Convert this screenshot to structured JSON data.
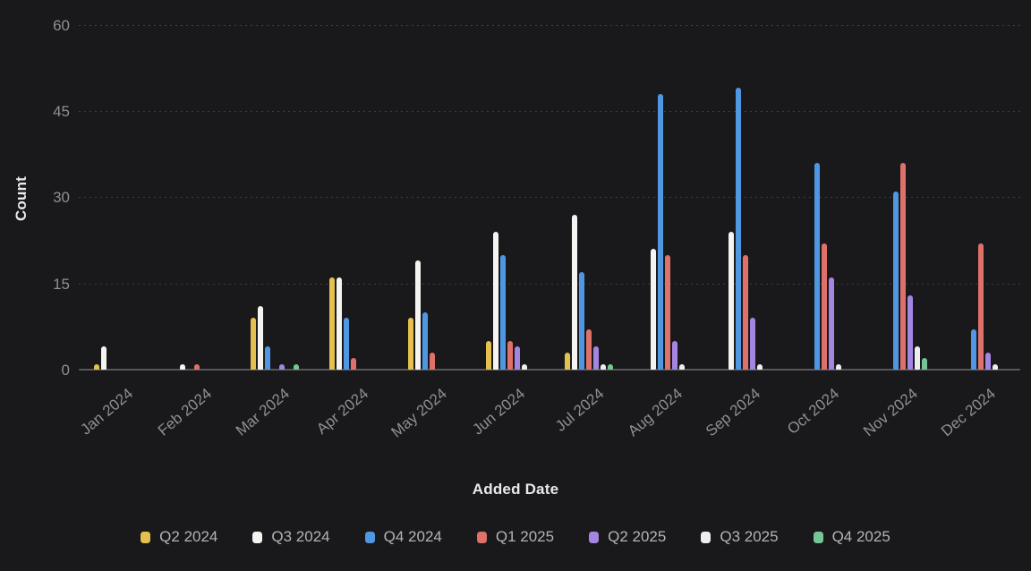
{
  "chart_data": {
    "type": "bar",
    "title": "",
    "xlabel": "Added Date",
    "ylabel": "Count",
    "ylim": [
      0,
      60
    ],
    "yticks": [
      0,
      15,
      30,
      45,
      60
    ],
    "grid": "dotted-horizontal",
    "legend_position": "bottom",
    "categories": [
      "Jan 2024",
      "Feb 2024",
      "Mar 2024",
      "Apr 2024",
      "May 2024",
      "Jun 2024",
      "Jul 2024",
      "Aug 2024",
      "Sep 2024",
      "Oct 2024",
      "Nov 2024",
      "Dec 2024"
    ],
    "series": [
      {
        "name": "Q2 2024",
        "color": "#e4c04f",
        "values": [
          1,
          0,
          9,
          16,
          9,
          5,
          3,
          0,
          0,
          0,
          0,
          0
        ]
      },
      {
        "name": "Q3 2024",
        "color": "#f5f4f1",
        "values": [
          4,
          1,
          11,
          16,
          19,
          24,
          27,
          21,
          24,
          0,
          0,
          0
        ]
      },
      {
        "name": "Q4 2024",
        "color": "#4f97e3",
        "values": [
          0,
          0,
          4,
          9,
          10,
          20,
          17,
          48,
          49,
          36,
          31,
          7
        ]
      },
      {
        "name": "Q1 2025",
        "color": "#df716b",
        "values": [
          0,
          1,
          0,
          2,
          3,
          5,
          7,
          20,
          20,
          22,
          36,
          22
        ]
      },
      {
        "name": "Q2 2025",
        "color": "#a585e2",
        "values": [
          0,
          0,
          1,
          0,
          0,
          4,
          4,
          5,
          9,
          16,
          13,
          3
        ]
      },
      {
        "name": "Q3 2025",
        "color": "#edefee",
        "values": [
          0,
          0,
          0,
          0,
          0,
          1,
          1,
          1,
          1,
          1,
          4,
          1
        ]
      },
      {
        "name": "Q4 2025",
        "color": "#76c596",
        "values": [
          0,
          0,
          1,
          0,
          0,
          0,
          1,
          0,
          0,
          0,
          2,
          0
        ]
      }
    ]
  },
  "theme": {
    "background": "#19191b",
    "grid_color": "#3e3e42",
    "baseline_color": "#58585c",
    "tick_label_color": "#8f8f94",
    "axis_title_color": "#e9e9eb",
    "legend_label_color": "#b3b3b8"
  }
}
